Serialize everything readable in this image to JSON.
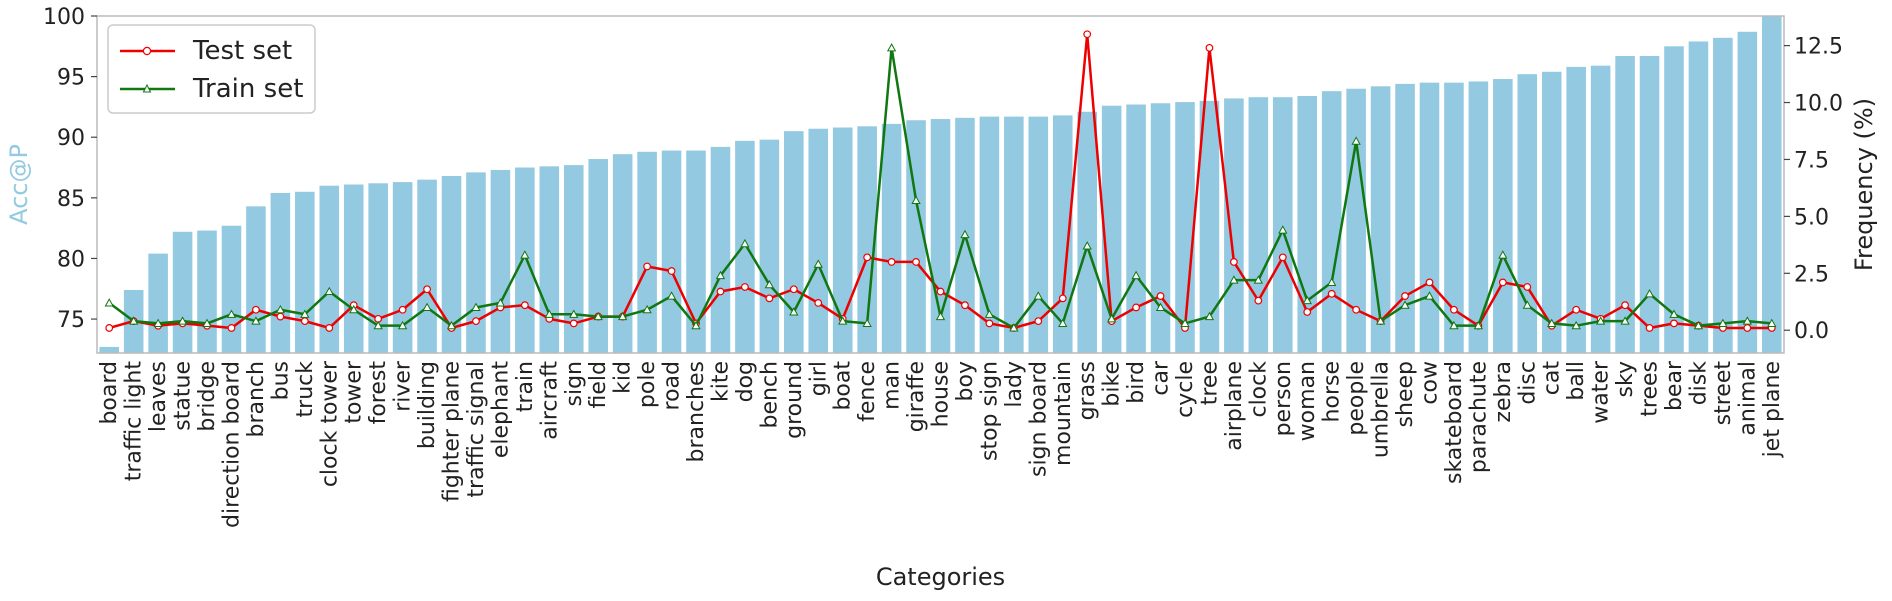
{
  "chart_data": {
    "type": "bar",
    "xlabel": "Categories",
    "ylabel": "Acc@P",
    "y2label": "Frequency (%)",
    "ylim": [
      72.2,
      100
    ],
    "y2lim": [
      -1.0,
      13.8
    ],
    "yticks": [
      75,
      80,
      85,
      90,
      95,
      100
    ],
    "y2ticks": [
      0.0,
      2.5,
      5.0,
      7.5,
      10.0,
      12.5
    ],
    "y2ticklabels": [
      "0.0",
      "2.5",
      "5.0",
      "7.5",
      "10.0",
      "12.5"
    ],
    "grid": false,
    "legend_position": "top-left",
    "colors": {
      "bars": "#93c9e1",
      "test": "#ee0000",
      "train": "#117711",
      "ylabel": "#93c9e1"
    },
    "categories": [
      "board",
      "traffic light",
      "leaves",
      "statue",
      "bridge",
      "direction board",
      "branch",
      "bus",
      "truck",
      "clock tower",
      "tower",
      "forest",
      "river",
      "building",
      "fighter plane",
      "traffic signal",
      "elephant",
      "train",
      "aircraft",
      "sign",
      "field",
      "kid",
      "pole",
      "road",
      "branches",
      "kite",
      "dog",
      "bench",
      "ground",
      "girl",
      "boat",
      "fence",
      "man",
      "giraffe",
      "house",
      "boy",
      "stop sign",
      "lady",
      "sign board",
      "mountain",
      "grass",
      "bike",
      "bird",
      "car",
      "cycle",
      "tree",
      "airplane",
      "clock",
      "person",
      "woman",
      "horse",
      "people",
      "umbrella",
      "sheep",
      "cow",
      "skateboard",
      "parachute",
      "zebra",
      "disc",
      "cat",
      "ball",
      "water",
      "sky",
      "trees",
      "bear",
      "disk",
      "street",
      "animal",
      "jet plane"
    ],
    "values": [
      72.7,
      77.4,
      80.4,
      82.2,
      82.3,
      82.7,
      84.3,
      85.4,
      85.5,
      86.0,
      86.1,
      86.2,
      86.3,
      86.5,
      86.8,
      87.1,
      87.3,
      87.5,
      87.6,
      87.7,
      88.2,
      88.6,
      88.8,
      88.9,
      88.9,
      89.2,
      89.7,
      89.8,
      90.5,
      90.7,
      90.8,
      90.9,
      91.1,
      91.4,
      91.5,
      91.6,
      91.7,
      91.7,
      91.7,
      91.8,
      92.1,
      92.6,
      92.7,
      92.8,
      92.9,
      93.0,
      93.2,
      93.3,
      93.3,
      93.4,
      93.8,
      94.0,
      94.2,
      94.4,
      94.5,
      94.5,
      94.6,
      94.8,
      95.2,
      95.4,
      95.8,
      95.9,
      96.7,
      96.7,
      97.5,
      97.9,
      98.2,
      98.7,
      100.0
    ],
    "series": [
      {
        "name": "Test set",
        "values": [
          0.1,
          0.4,
          0.2,
          0.3,
          0.2,
          0.1,
          0.9,
          0.6,
          0.4,
          0.1,
          1.1,
          0.5,
          0.9,
          1.8,
          0.1,
          0.4,
          1.0,
          1.1,
          0.5,
          0.3,
          0.6,
          0.6,
          2.8,
          2.6,
          0.3,
          1.7,
          1.9,
          1.4,
          1.8,
          1.2,
          0.5,
          3.2,
          3.0,
          3.0,
          1.7,
          1.1,
          0.3,
          0.1,
          0.4,
          1.4,
          13.0,
          0.4,
          1.0,
          1.5,
          0.1,
          12.4,
          3.0,
          1.3,
          3.2,
          0.8,
          1.6,
          0.9,
          0.4,
          1.5,
          2.1,
          0.9,
          0.2,
          2.1,
          1.9,
          0.2,
          0.9,
          0.5,
          1.1,
          0.1,
          0.3,
          0.2,
          0.1,
          0.1,
          0.1
        ]
      },
      {
        "name": "Train set",
        "values": [
          1.2,
          0.4,
          0.3,
          0.4,
          0.3,
          0.7,
          0.4,
          0.9,
          0.7,
          1.7,
          0.9,
          0.2,
          0.2,
          1.0,
          0.2,
          1.0,
          1.2,
          3.3,
          0.7,
          0.7,
          0.6,
          0.6,
          0.9,
          1.5,
          0.2,
          2.4,
          3.8,
          2.0,
          0.8,
          2.9,
          0.4,
          0.3,
          12.4,
          5.7,
          0.6,
          4.2,
          0.7,
          0.1,
          1.5,
          0.3,
          3.7,
          0.5,
          2.4,
          1.0,
          0.3,
          0.6,
          2.2,
          2.2,
          4.4,
          1.3,
          2.1,
          8.3,
          0.4,
          1.1,
          1.5,
          0.2,
          0.2,
          3.3,
          1.1,
          0.3,
          0.2,
          0.4,
          0.4,
          1.6,
          0.7,
          0.2,
          0.3,
          0.4,
          0.3
        ]
      }
    ]
  }
}
